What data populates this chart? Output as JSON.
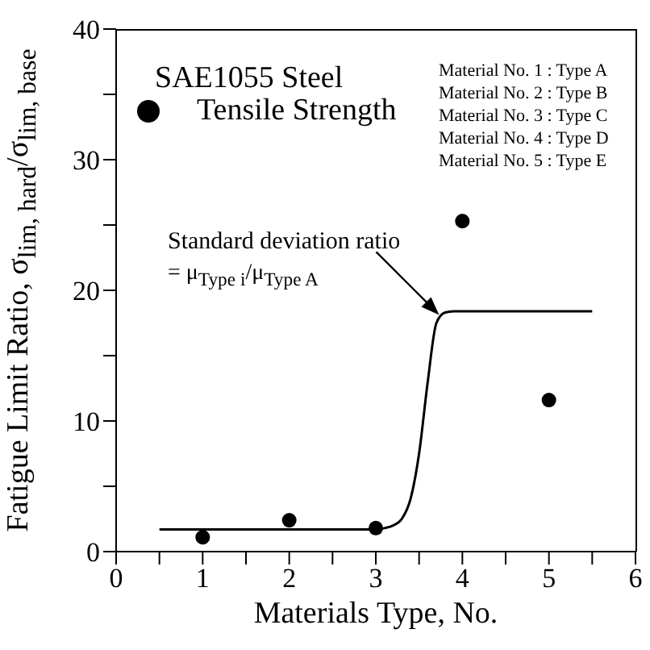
{
  "chart_data": {
    "type": "scatter",
    "title": "SAE1055 Steel",
    "xlabel": "Materials Type, No.",
    "ylabel": "Fatigue Limit Ratio, σ$_{lim, hard}$/σ$_{lim, base}$",
    "x": [
      1,
      2,
      3,
      4,
      5
    ],
    "series": [
      {
        "name": "Tensile Strength",
        "type": "scatter",
        "color": "#000000",
        "marker": "circle",
        "values": [
          1.1,
          2.4,
          1.8,
          25.3,
          11.6
        ]
      },
      {
        "type": "line",
        "color": "#000000",
        "marker": "none",
        "line_style": "solid",
        "x": [
          0.5,
          1,
          2,
          3,
          3.1,
          3.2,
          3.3,
          3.4,
          3.5,
          3.6,
          3.7,
          3.8,
          3.9,
          4,
          5,
          5.5
        ],
        "values": [
          1.7,
          1.7,
          1.7,
          1.7,
          1.8,
          2.0,
          2.5,
          4,
          7.5,
          13,
          17.5,
          18.3,
          18.4,
          18.4,
          18.4,
          18.4
        ]
      }
    ],
    "xlim": [
      0,
      6
    ],
    "xticks": [
      0,
      {
        "value": 0.5,
        "label": null
      },
      1,
      {
        "value": 1.5,
        "label": null
      },
      2,
      {
        "value": 2.5,
        "label": null
      },
      3,
      {
        "value": 3.5,
        "label": null
      },
      4,
      {
        "value": 4.5,
        "label": null
      },
      5,
      {
        "value": 5.5,
        "label": null
      },
      6
    ],
    "ylim": [
      0,
      40
    ],
    "yticks": [
      0,
      {
        "value": 5,
        "label": null
      },
      10,
      {
        "value": 15,
        "label": null
      },
      20,
      {
        "value": 25,
        "label": null
      },
      30,
      {
        "value": 35,
        "label": null
      },
      40
    ],
    "legend": "top left",
    "grid": false,
    "annotations": [
      {
        "text": "Standard deviation ratio",
        "x": 3.75,
        "y": 18
      },
      "= μ$_{Type i}$/μ$_{Type A}$",
      "Material No. 1 : Type A",
      "Material No. 2 : Type B",
      "Material No. 3 : Type C",
      "Material No. 4 : Type D",
      "Material No. 5 : Type E"
    ]
  }
}
